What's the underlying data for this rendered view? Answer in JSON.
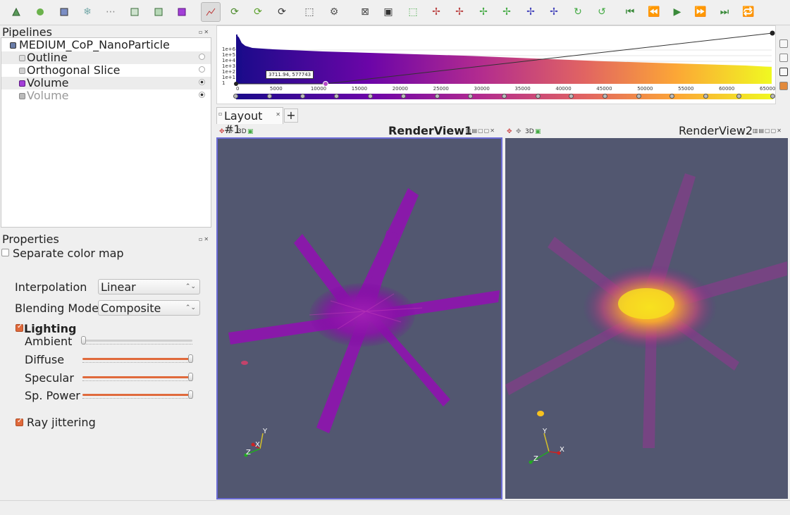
{
  "toolbar": {
    "icons": [
      "open-icon",
      "reload-icon",
      "cube-icon",
      "snowflake-icon",
      "dots-icon",
      "cube-outline-icon",
      "cube-outline-icon",
      "purple-cube-icon",
      "histogram-icon",
      "rotate-icon",
      "rotate-green-icon",
      "rotate-dark-icon",
      "pointer-select-icon",
      "camera-icon",
      "reset-camera-icon",
      "zoom-data-icon",
      "zoom-box-icon",
      "axis-x-plus-icon",
      "axis-x-minus-icon",
      "axis-y-plus-icon",
      "axis-y-minus-icon",
      "axis-z-plus-icon",
      "axis-z-minus-icon",
      "rotate-plus90-icon",
      "rotate-minus90-icon",
      "first-frame-icon",
      "prev-frame-icon",
      "play-icon",
      "next-frame-icon",
      "last-frame-icon",
      "loop-icon"
    ]
  },
  "pipelines": {
    "title": "Pipelines",
    "source": "MEDIUM_CoP_NanoParticle",
    "items": [
      {
        "label": "Outline",
        "visible": false,
        "selected": true
      },
      {
        "label": "Orthogonal Slice",
        "visible": false,
        "selected": false
      },
      {
        "label": "Volume",
        "visible": true,
        "selected": true
      },
      {
        "label": "Volume",
        "visible": true,
        "selected": false
      }
    ]
  },
  "properties": {
    "title": "Properties",
    "separate_color_map": "Separate color map",
    "interpolation_label": "Interpolation",
    "interpolation_value": "Linear",
    "blending_label": "Blending Mode",
    "blending_value": "Composite",
    "lighting_label": "Lighting",
    "ambient_label": "Ambient",
    "diffuse_label": "Diffuse",
    "specular_label": "Specular",
    "sp_power_label": "Sp. Power",
    "ray_jittering_label": "Ray jittering",
    "ambient_value": 0.0,
    "diffuse_value": 1.0,
    "specular_value": 1.0,
    "sp_power_value": 1.0
  },
  "histogram": {
    "y_ticks": [
      "1e+6",
      "1e+5",
      "1e+4",
      "1e+3",
      "1e+2",
      "1e+1",
      "1"
    ],
    "x_ticks": [
      "0",
      "5000",
      "10000",
      "15000",
      "20000",
      "25000",
      "30000",
      "35000",
      "40000",
      "45000",
      "50000",
      "55000",
      "60000",
      "65000"
    ],
    "tooltip": "3711.94, 577743"
  },
  "layout": {
    "tab_label": "Layout #1",
    "add_tab": "+"
  },
  "views": {
    "view1_title": "RenderView1",
    "view2_title": "RenderView2",
    "mode_3d": "3D",
    "axis_x": "X",
    "axis_y": "Y",
    "axis_z": "Z"
  },
  "colors": {
    "accent": "#e06a3c",
    "render_bg": "#525770",
    "view1_border": "#6b6bd6"
  }
}
